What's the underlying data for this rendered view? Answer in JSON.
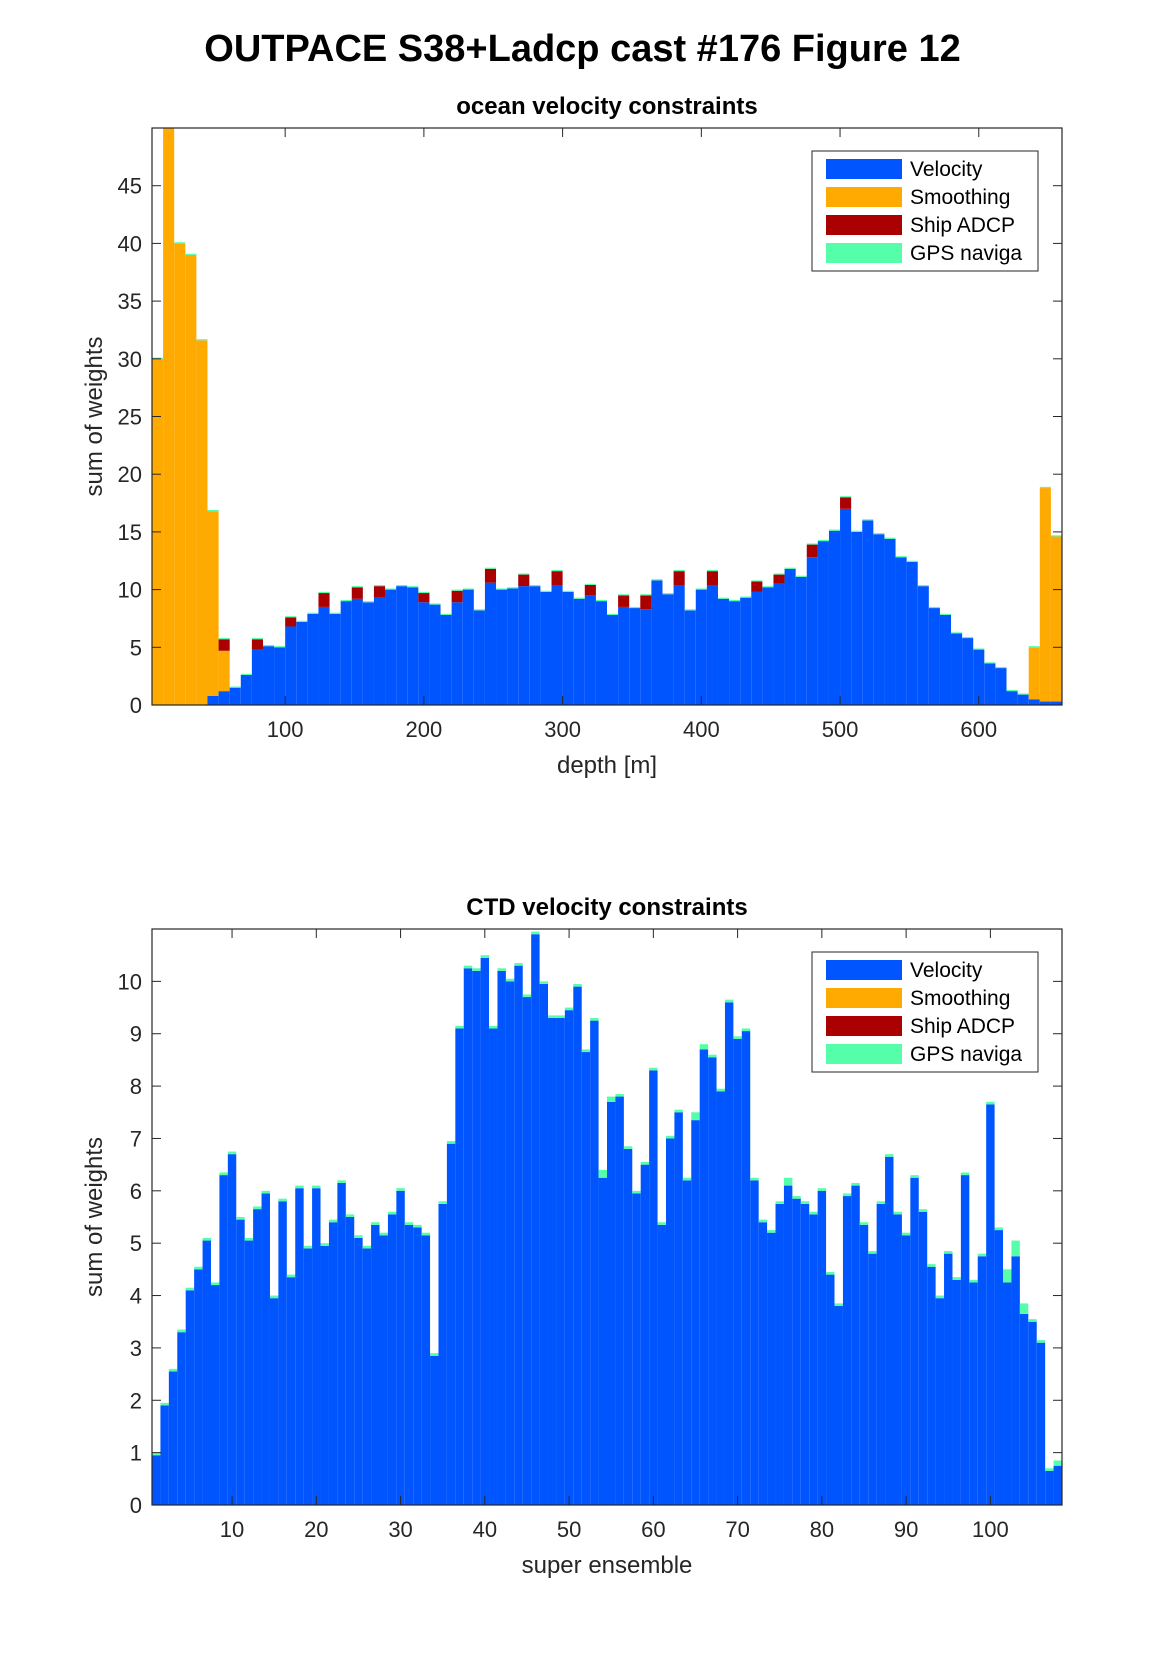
{
  "figure_title": "OUTPACE S38+Ladcp cast #176  Figure 12",
  "colors": {
    "velocity": "#0055FF",
    "smoothing": "#FFAA00",
    "ship_adcp": "#AA0000",
    "gps": "#55FFAA"
  },
  "legend": [
    "Velocity",
    "Smoothing",
    "Ship ADCP",
    "GPS naviga"
  ],
  "chart_data": [
    {
      "type": "bar",
      "stacked": true,
      "title": "ocean velocity constraints",
      "xlabel": "depth [m]",
      "ylabel": "sum of weights",
      "xlim": [
        4,
        660
      ],
      "ylim": [
        0,
        50
      ],
      "xticks": [
        100,
        200,
        300,
        400,
        500,
        600
      ],
      "yticks": [
        0,
        5,
        10,
        15,
        20,
        25,
        30,
        35,
        40,
        45
      ],
      "bin_width": 8,
      "x": [
        8,
        16,
        24,
        32,
        40,
        48,
        56,
        64,
        72,
        80,
        88,
        96,
        104,
        112,
        120,
        128,
        136,
        144,
        152,
        160,
        168,
        176,
        184,
        192,
        200,
        208,
        216,
        224,
        232,
        240,
        248,
        256,
        264,
        272,
        280,
        288,
        296,
        304,
        312,
        320,
        328,
        336,
        344,
        352,
        360,
        368,
        376,
        384,
        392,
        400,
        408,
        416,
        424,
        432,
        440,
        448,
        456,
        464,
        472,
        480,
        488,
        496,
        504,
        512,
        520,
        528,
        536,
        544,
        552,
        560,
        568,
        576,
        584,
        592,
        600,
        608,
        616,
        624,
        632,
        640,
        648,
        656
      ],
      "series": [
        {
          "name": "Velocity",
          "values": [
            0,
            0,
            0,
            0,
            0,
            0.8,
            1.2,
            1.5,
            2.6,
            4.8,
            5.1,
            5.0,
            6.8,
            7.2,
            7.9,
            8.5,
            7.9,
            9.0,
            9.2,
            8.9,
            9.3,
            10.0,
            10.3,
            10.2,
            8.9,
            8.7,
            7.8,
            8.9,
            10.0,
            8.2,
            10.6,
            10.0,
            10.1,
            10.3,
            10.3,
            9.8,
            10.4,
            9.8,
            9.2,
            9.5,
            9.0,
            7.8,
            8.5,
            8.4,
            8.3,
            10.8,
            9.6,
            10.4,
            8.2,
            10.0,
            10.4,
            9.2,
            9.0,
            9.3,
            9.8,
            10.2,
            10.5,
            11.8,
            11.1,
            12.8,
            14.2,
            15.1,
            17.0,
            15.0,
            16.0,
            14.8,
            14.4,
            12.8,
            12.4,
            10.3,
            8.4,
            7.8,
            6.2,
            5.8,
            4.8,
            3.6,
            3.2,
            1.2,
            0.9,
            0.5,
            0.3,
            0.3
          ]
        },
        {
          "name": "Smoothing",
          "values": [
            30,
            50,
            40,
            39,
            31.6,
            16,
            3.5,
            0,
            0,
            0,
            0,
            0,
            0,
            0,
            0,
            0,
            0,
            0,
            0,
            0,
            0,
            0,
            0,
            0,
            0,
            0,
            0,
            0,
            0,
            0,
            0,
            0,
            0,
            0,
            0,
            0,
            0,
            0,
            0,
            0,
            0,
            0,
            0,
            0,
            0,
            0,
            0,
            0,
            0,
            0,
            0,
            0,
            0,
            0,
            0,
            0,
            0,
            0,
            0,
            0,
            0,
            0,
            0,
            0,
            0,
            0,
            0,
            0,
            0,
            0,
            0,
            0,
            0,
            0,
            0,
            0,
            0,
            0,
            0,
            4.5,
            18.5,
            14.3
          ]
        },
        {
          "name": "Ship ADCP",
          "values": [
            0,
            0,
            0,
            0,
            0,
            0,
            1.0,
            0,
            0,
            0.9,
            0,
            0,
            0.8,
            0,
            0,
            1.2,
            0,
            0,
            1.0,
            0,
            1.0,
            0,
            0,
            0,
            0.8,
            0,
            0,
            1.0,
            0,
            0,
            1.2,
            0,
            0,
            1.0,
            0,
            0,
            1.2,
            0,
            0,
            0.9,
            0,
            0,
            1.0,
            0,
            1.2,
            0,
            0,
            1.2,
            0,
            0,
            1.2,
            0,
            0,
            0,
            0.9,
            0,
            0.8,
            0,
            0,
            1.1,
            0,
            0,
            1.0,
            0,
            0,
            0,
            0,
            0,
            0,
            0,
            0,
            0,
            0,
            0,
            0,
            0,
            0,
            0,
            0,
            0,
            0,
            0
          ]
        },
        {
          "name": "GPS naviga",
          "values": [
            0.1,
            0.1,
            0.1,
            0.1,
            0.1,
            0.1,
            0.1,
            0.1,
            0.1,
            0.1,
            0.1,
            0.1,
            0.1,
            0.1,
            0.1,
            0.1,
            0.1,
            0.1,
            0.1,
            0.1,
            0.1,
            0.1,
            0.1,
            0.1,
            0.1,
            0.1,
            0.1,
            0.1,
            0.1,
            0.1,
            0.1,
            0.1,
            0.1,
            0.1,
            0.1,
            0.1,
            0.1,
            0.1,
            0.1,
            0.1,
            0.1,
            0.1,
            0.1,
            0.1,
            0.1,
            0.1,
            0.1,
            0.1,
            0.1,
            0.1,
            0.1,
            0.1,
            0.1,
            0.1,
            0.1,
            0.1,
            0.1,
            0.1,
            0.1,
            0.1,
            0.1,
            0.1,
            0.1,
            0.1,
            0.1,
            0.1,
            0.1,
            0.1,
            0.1,
            0.1,
            0.1,
            0.1,
            0.1,
            0.1,
            0.1,
            0.1,
            0.1,
            0.1,
            0.1,
            0.1,
            0.1,
            0.1
          ]
        }
      ],
      "legend_position": "top-right",
      "grid": false
    },
    {
      "type": "bar",
      "stacked": true,
      "title": "CTD velocity constraints",
      "xlabel": "super ensemble",
      "ylabel": "sum of weights",
      "xlim": [
        0.5,
        108.5
      ],
      "ylim": [
        0,
        11
      ],
      "xticks": [
        10,
        20,
        30,
        40,
        50,
        60,
        70,
        80,
        90,
        100
      ],
      "yticks": [
        0,
        1,
        2,
        3,
        4,
        5,
        6,
        7,
        8,
        9,
        10
      ],
      "bin_width": 1,
      "x_start": 1,
      "series": [
        {
          "name": "Velocity",
          "values": [
            0.95,
            1.9,
            2.55,
            3.3,
            4.1,
            4.5,
            5.05,
            4.2,
            6.3,
            6.7,
            5.45,
            5.05,
            5.65,
            5.95,
            3.95,
            5.8,
            4.35,
            6.05,
            4.9,
            6.05,
            4.95,
            5.4,
            6.15,
            5.5,
            5.1,
            4.9,
            5.35,
            5.15,
            5.55,
            6.0,
            5.35,
            5.3,
            5.15,
            2.85,
            5.75,
            6.9,
            9.1,
            10.25,
            10.2,
            10.45,
            9.1,
            10.2,
            10.0,
            10.3,
            9.7,
            10.9,
            9.95,
            9.3,
            9.3,
            9.45,
            9.9,
            8.65,
            9.25,
            6.25,
            7.7,
            7.8,
            6.8,
            5.95,
            6.5,
            8.3,
            5.35,
            7.0,
            7.5,
            6.2,
            7.35,
            8.7,
            8.55,
            7.9,
            9.6,
            8.9,
            9.05,
            6.2,
            5.4,
            5.2,
            5.75,
            6.1,
            5.85,
            5.75,
            5.55,
            6.0,
            4.4,
            3.8,
            5.9,
            6.1,
            5.35,
            4.8,
            5.75,
            6.65,
            5.55,
            5.15,
            6.25,
            5.6,
            4.55,
            3.95,
            4.8,
            4.3,
            6.3,
            4.25,
            4.75,
            7.65,
            5.25,
            4.25,
            4.75,
            3.65,
            3.5,
            3.1,
            0.65,
            0.75
          ]
        },
        {
          "name": "Smoothing",
          "values": [
            0,
            0,
            0,
            0,
            0,
            0,
            0,
            0,
            0,
            0,
            0,
            0,
            0,
            0,
            0,
            0,
            0,
            0,
            0,
            0,
            0,
            0,
            0,
            0,
            0,
            0,
            0,
            0,
            0,
            0,
            0,
            0,
            0,
            0,
            0,
            0,
            0,
            0,
            0,
            0,
            0,
            0,
            0,
            0,
            0,
            0,
            0,
            0,
            0,
            0,
            0,
            0,
            0,
            0,
            0,
            0,
            0,
            0,
            0,
            0,
            0,
            0,
            0,
            0,
            0,
            0,
            0,
            0,
            0,
            0,
            0,
            0,
            0,
            0,
            0,
            0,
            0,
            0,
            0,
            0,
            0,
            0,
            0,
            0,
            0,
            0,
            0,
            0,
            0,
            0,
            0,
            0,
            0,
            0,
            0,
            0,
            0,
            0,
            0,
            0,
            0,
            0,
            0,
            0,
            0,
            0,
            0,
            0
          ]
        },
        {
          "name": "Ship ADCP",
          "values": [
            0,
            0,
            0,
            0,
            0,
            0,
            0,
            0,
            0,
            0,
            0,
            0,
            0,
            0,
            0,
            0,
            0,
            0,
            0,
            0,
            0,
            0,
            0,
            0,
            0,
            0,
            0,
            0,
            0,
            0,
            0,
            0,
            0,
            0,
            0,
            0,
            0,
            0,
            0,
            0,
            0,
            0,
            0,
            0,
            0,
            0,
            0,
            0,
            0,
            0,
            0,
            0,
            0,
            0,
            0,
            0,
            0,
            0,
            0,
            0,
            0,
            0,
            0,
            0,
            0,
            0,
            0,
            0,
            0,
            0,
            0,
            0,
            0,
            0,
            0,
            0,
            0,
            0,
            0,
            0,
            0,
            0,
            0,
            0,
            0,
            0,
            0,
            0,
            0,
            0,
            0,
            0,
            0,
            0,
            0,
            0,
            0,
            0,
            0,
            0,
            0,
            0,
            0,
            0,
            0,
            0,
            0,
            0
          ]
        },
        {
          "name": "GPS naviga",
          "values": [
            0.05,
            0.05,
            0.05,
            0.05,
            0.05,
            0.05,
            0.05,
            0.05,
            0.05,
            0.05,
            0.05,
            0.05,
            0.05,
            0.05,
            0.05,
            0.05,
            0.05,
            0.05,
            0.05,
            0.05,
            0.05,
            0.05,
            0.05,
            0.05,
            0.05,
            0.05,
            0.05,
            0.05,
            0.05,
            0.05,
            0.05,
            0.05,
            0.05,
            0.05,
            0.05,
            0.05,
            0.05,
            0.05,
            0.05,
            0.05,
            0.05,
            0.05,
            0.05,
            0.05,
            0.05,
            0.05,
            0.05,
            0.05,
            0.05,
            0.05,
            0.05,
            0.05,
            0.05,
            0.15,
            0.1,
            0.05,
            0.05,
            0.05,
            0.05,
            0.05,
            0.05,
            0.05,
            0.05,
            0.05,
            0.15,
            0.1,
            0.05,
            0.05,
            0.05,
            0.05,
            0.05,
            0.05,
            0.05,
            0.05,
            0.05,
            0.15,
            0.05,
            0.05,
            0.05,
            0.05,
            0.05,
            0.05,
            0.05,
            0.05,
            0.05,
            0.05,
            0.05,
            0.05,
            0.05,
            0.05,
            0.05,
            0.05,
            0.05,
            0.05,
            0.05,
            0.05,
            0.05,
            0.05,
            0.05,
            0.05,
            0.05,
            0.25,
            0.3,
            0.2,
            0.05,
            0.05,
            0.05,
            0.1
          ]
        }
      ],
      "legend_position": "top-right",
      "grid": false
    }
  ]
}
